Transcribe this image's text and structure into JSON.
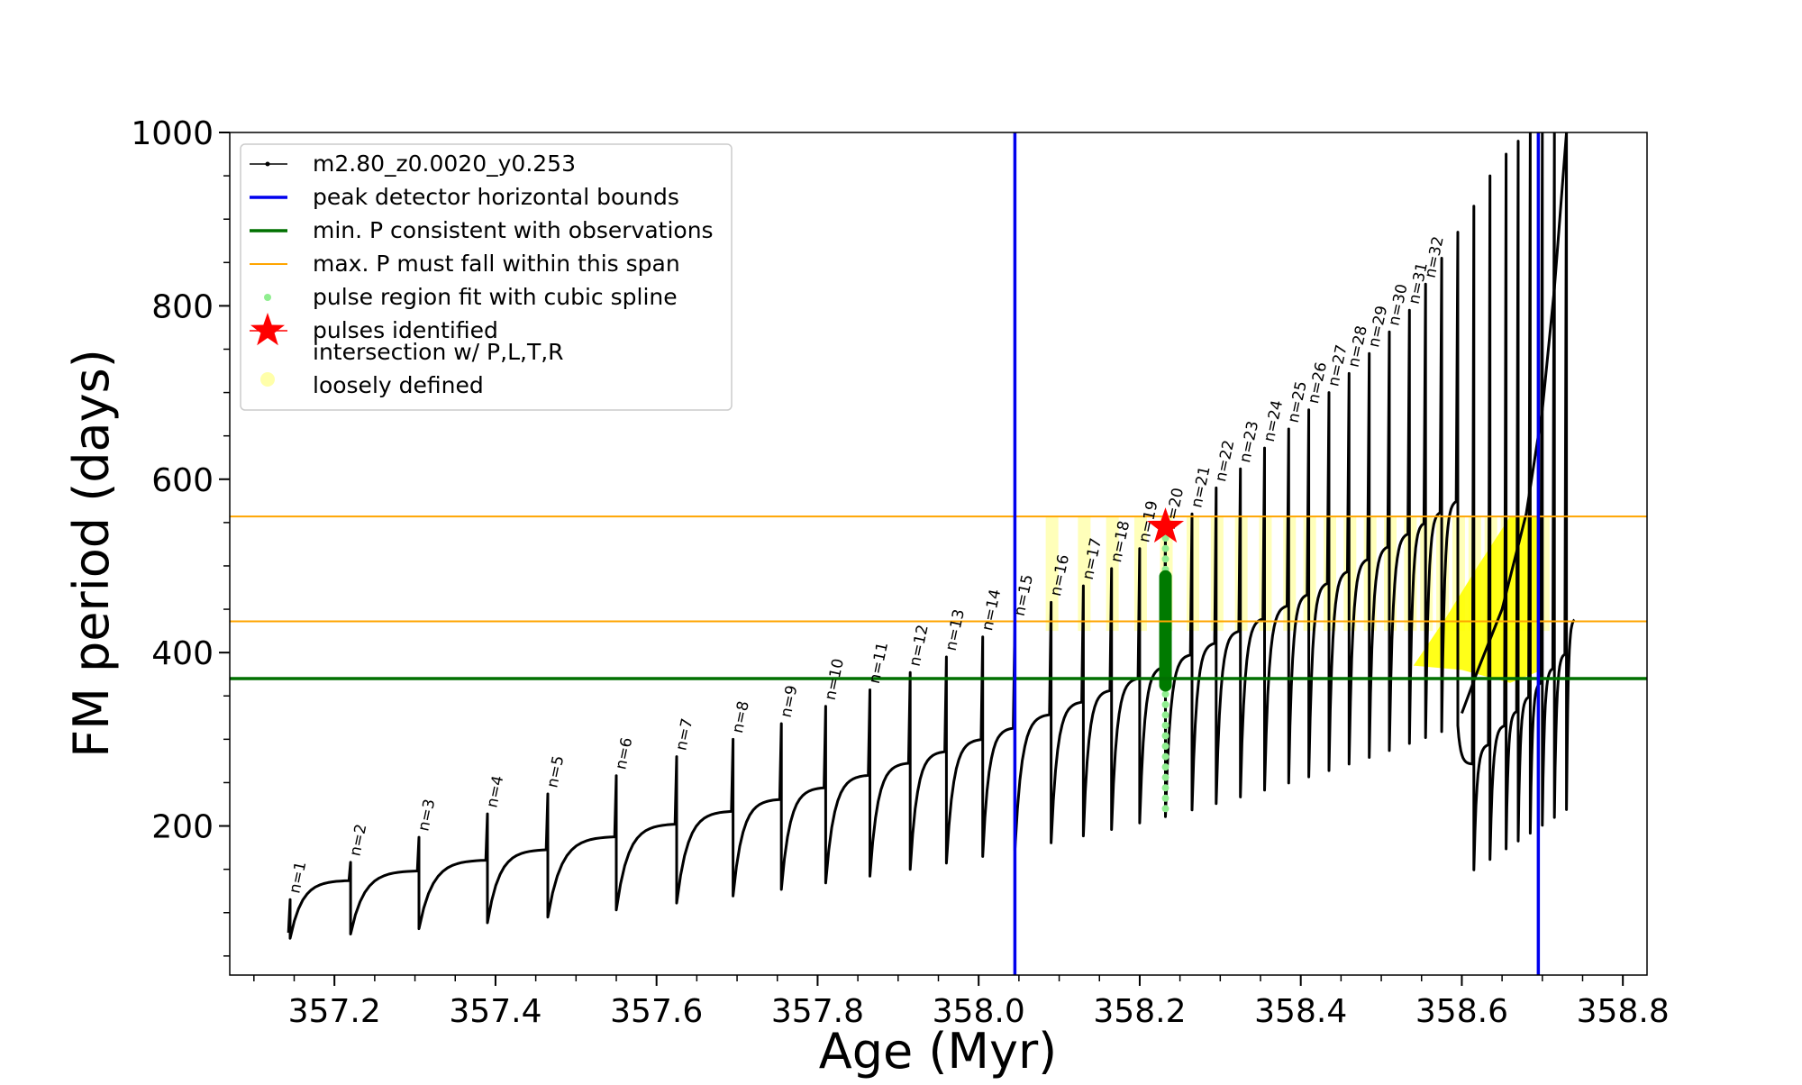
{
  "chart_data": {
    "type": "line",
    "xlabel": "Age (Myr)",
    "ylabel": "FM period (days)",
    "xlim": [
      357.07,
      358.83
    ],
    "ylim": [
      28,
      1000
    ],
    "x_ticks": [
      357.2,
      357.4,
      357.6,
      357.8,
      358.0,
      358.2,
      358.4,
      358.6,
      358.8
    ],
    "x_tick_labels": [
      "357.2",
      "357.4",
      "357.6",
      "357.8",
      "358.0",
      "358.2",
      "358.4",
      "358.6",
      "358.8"
    ],
    "y_ticks": [
      200,
      400,
      600,
      800,
      1000
    ],
    "y_tick_labels": [
      "200",
      "400",
      "600",
      "800",
      "1000"
    ],
    "grid": false,
    "legend_position": "top-left",
    "series": [
      {
        "name": "m2.80_z0.0020_y0.253",
        "kind": "line",
        "color": "#000000",
        "x": [
          357.145,
          357.22,
          357.305,
          357.39,
          357.465,
          357.55,
          357.625,
          357.695,
          357.755,
          357.81,
          357.865,
          357.915,
          357.96,
          358.005,
          358.045,
          358.09,
          358.13,
          358.165,
          358.2,
          358.232,
          358.265,
          358.295,
          358.325,
          358.355,
          358.385,
          358.41,
          358.435,
          358.46,
          358.485,
          358.51,
          358.535,
          358.555,
          358.575,
          358.595,
          358.615,
          358.635,
          358.655,
          358.67,
          358.685,
          358.7,
          358.715,
          358.73
        ],
        "values": [
          115,
          158,
          187,
          214,
          237,
          258,
          280,
          300,
          318,
          338,
          357,
          377,
          395,
          418,
          435,
          458,
          477,
          497,
          520,
          535,
          560,
          590,
          612,
          636,
          658,
          680,
          700,
          722,
          745,
          770,
          795,
          825,
          855,
          885,
          915,
          950,
          975,
          990,
          1000,
          1000,
          1000,
          1000
        ]
      },
      {
        "name": "peak detector horizontal bounds",
        "kind": "vline",
        "color": "#0000ee",
        "x": [
          358.045,
          358.695
        ]
      },
      {
        "name": "min. P consistent with observations",
        "kind": "hline",
        "color": "#007000",
        "y": 370
      },
      {
        "name": "max. P must fall within this span",
        "kind": "hline",
        "color": "#ffa500",
        "y": [
          436,
          557
        ]
      },
      {
        "name": "pulse region fit with cubic spline",
        "kind": "scatter",
        "color": "#90ee90",
        "x": 358.232,
        "y_range": [
          220,
          545
        ]
      },
      {
        "name": "pulses identified",
        "kind": "marker",
        "color": "#ff0000",
        "x": [
          358.232
        ],
        "values": [
          545
        ]
      },
      {
        "name": "intersection w/ P,L,T,R\nloosely defined",
        "kind": "region",
        "color": "#ffff66"
      }
    ],
    "annotations": [
      "n=1",
      "n=2",
      "n=3",
      "n=4",
      "n=5",
      "n=6",
      "n=7",
      "n=8",
      "n=9",
      "n=10",
      "n=11",
      "n=12",
      "n=13",
      "n=14",
      "n=15",
      "n=16",
      "n=17",
      "n=18",
      "n=19",
      "n=20",
      "n=21",
      "n=22",
      "n=23",
      "n=24",
      "n=25",
      "n=26",
      "n=27",
      "n=28",
      "n=29",
      "n=30",
      "n=31",
      "n=32"
    ]
  }
}
